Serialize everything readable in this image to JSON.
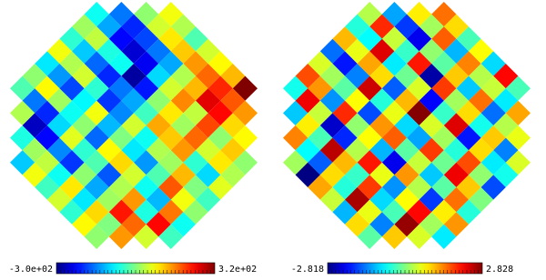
{
  "chart_data": [
    {
      "type": "heatmap",
      "colormap": "jet",
      "clim": [
        {
          "value": -300,
          "label": "-3.0e+02"
        },
        {
          "value": 320,
          "label": "3.2e+02"
        }
      ],
      "rows": [
        [
          -60,
          -150,
          20,
          80
        ],
        [
          30,
          -120,
          -200,
          60,
          40
        ],
        [
          -40,
          50,
          -220,
          -180,
          100,
          -20
        ],
        [
          80,
          -100,
          -50,
          -250,
          -150,
          120,
          60
        ],
        [
          -80,
          40,
          -160,
          -60,
          -230,
          -120,
          150,
          90
        ],
        [
          20,
          -130,
          60,
          -200,
          -280,
          -90,
          40,
          180,
          130
        ],
        [
          -20,
          90,
          -180,
          -40,
          -150,
          -210,
          60,
          130,
          220,
          320
        ],
        [
          -150,
          30,
          -70,
          -190,
          -120,
          20,
          160,
          260,
          190
        ],
        [
          40,
          -200,
          -60,
          80,
          -140,
          -30,
          100,
          50,
          240,
          150
        ],
        [
          -260,
          -90,
          20,
          -110,
          60,
          140,
          30,
          200,
          110
        ],
        [
          -50,
          -220,
          70,
          -160,
          10,
          -60,
          120,
          180,
          20,
          90
        ],
        [
          30,
          -140,
          -40,
          90,
          -80,
          40,
          150,
          60,
          120
        ],
        [
          -100,
          50,
          -190,
          -20,
          110,
          -130,
          30,
          -40,
          100,
          20
        ],
        [
          80,
          -60,
          20,
          -170,
          60,
          -20,
          130,
          -90,
          40
        ],
        [
          -30,
          100,
          -120,
          40,
          -60,
          190,
          10,
          70
        ],
        [
          60,
          -80,
          30,
          150,
          -110,
          80,
          -30
        ],
        [
          -40,
          110,
          230,
          -50,
          170,
          20
        ],
        [
          90,
          10,
          180,
          240,
          -60
        ],
        [
          20,
          150,
          60,
          -30
        ]
      ]
    },
    {
      "type": "heatmap",
      "colormap": "jet",
      "clim": [
        -2.818,
        2.828
      ],
      "rows": [
        [
          0.3,
          -1.2,
          0.8,
          1.5
        ],
        [
          -0.5,
          1.9,
          -1.8,
          0.2,
          0.9
        ],
        [
          1.1,
          -0.7,
          0.4,
          -2.2,
          1.6,
          -0.3
        ],
        [
          -1.5,
          0.6,
          2.3,
          -0.4,
          0.1,
          -1.1,
          0.7
        ],
        [
          0.5,
          -2.0,
          1.2,
          -0.8,
          2.0,
          -0.2,
          1.4,
          -0.9
        ],
        [
          1.7,
          0.2,
          -1.4,
          0.9,
          -0.1,
          -2.6,
          1.0,
          0.3,
          2.1
        ],
        [
          -0.6,
          1.3,
          -0.2,
          2.4,
          -1.6,
          0.5,
          1.8,
          -1.0,
          0.4,
          -0.3
        ],
        [
          2.2,
          -1.3,
          0.7,
          -0.5,
          1.1,
          -2.1,
          0.2,
          1.5,
          -0.8
        ],
        [
          -1.0,
          0.4,
          1.9,
          -1.7,
          0.6,
          2.8,
          -0.4,
          0.9,
          -1.5,
          1.2
        ],
        [
          0.8,
          -2.4,
          0.1,
          1.3,
          -0.9,
          0.5,
          2.3,
          -0.6,
          0.3
        ],
        [
          1.4,
          -0.3,
          -1.9,
          0.7,
          1.6,
          -1.2,
          0.2,
          -2.0,
          1.0,
          0.6
        ],
        [
          -0.7,
          2.5,
          0.3,
          -1.1,
          -0.2,
          1.8,
          -0.5,
          0.9,
          -1.4
        ],
        [
          0.2,
          -1.6,
          1.1,
          2.0,
          -2.2,
          0.4,
          -0.1,
          1.7,
          -0.8,
          0.5
        ],
        [
          -2.8,
          0.9,
          -0.4,
          0.6,
          1.3,
          -1.0,
          2.2,
          0.1,
          -0.6
        ],
        [
          1.2,
          -0.5,
          1.8,
          -1.3,
          0.3,
          -0.2,
          1.0,
          -1.7
        ],
        [
          0.4,
          2.6,
          -0.9,
          0.7,
          -1.8,
          1.5,
          0.0
        ],
        [
          -1.1,
          0.6,
          -0.3,
          2.1,
          0.8,
          -0.5
        ],
        [
          0.9,
          -1.4,
          2.7,
          0.2,
          1.3
        ],
        [
          -0.2,
          1.0,
          0.5,
          -0.8
        ]
      ]
    }
  ]
}
